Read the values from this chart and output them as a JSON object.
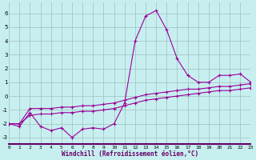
{
  "x": [
    0,
    1,
    2,
    3,
    4,
    5,
    6,
    7,
    8,
    9,
    10,
    11,
    12,
    13,
    14,
    15,
    16,
    17,
    18,
    19,
    20,
    21,
    22,
    23
  ],
  "line_spike": [
    -2.0,
    -2.2,
    -1.2,
    -2.2,
    -2.5,
    -2.3,
    -3.0,
    -2.4,
    -2.3,
    -2.4,
    -2.0,
    -0.5,
    4.0,
    5.8,
    6.2,
    4.8,
    2.7,
    1.5,
    1.0,
    1.0,
    1.5,
    1.5,
    1.6,
    1.0
  ],
  "line_upper": [
    -2.0,
    -2.0,
    -0.9,
    -0.9,
    -0.9,
    -0.8,
    -0.8,
    -0.7,
    -0.7,
    -0.6,
    -0.5,
    -0.3,
    -0.1,
    0.1,
    0.2,
    0.3,
    0.4,
    0.5,
    0.5,
    0.6,
    0.7,
    0.7,
    0.8,
    0.9
  ],
  "line_lower": [
    -2.0,
    -2.0,
    -1.4,
    -1.3,
    -1.3,
    -1.2,
    -1.2,
    -1.1,
    -1.1,
    -1.0,
    -0.9,
    -0.7,
    -0.5,
    -0.3,
    -0.2,
    -0.1,
    0.0,
    0.1,
    0.2,
    0.3,
    0.4,
    0.4,
    0.5,
    0.6
  ],
  "bg_color": "#c8eff0",
  "line_color": "#990099",
  "grid_color": "#9fbfbf",
  "xlabel": "Windchill (Refroidissement éolien,°C)",
  "yticks": [
    -3,
    -2,
    -1,
    0,
    1,
    2,
    3,
    4,
    5,
    6
  ],
  "xticks": [
    0,
    1,
    2,
    3,
    4,
    5,
    6,
    7,
    8,
    9,
    10,
    11,
    12,
    13,
    14,
    15,
    16,
    17,
    18,
    19,
    20,
    21,
    22,
    23
  ],
  "xlim": [
    0,
    23
  ],
  "ylim": [
    -3.5,
    6.8
  ],
  "figsize": [
    3.2,
    2.0
  ],
  "dpi": 100
}
